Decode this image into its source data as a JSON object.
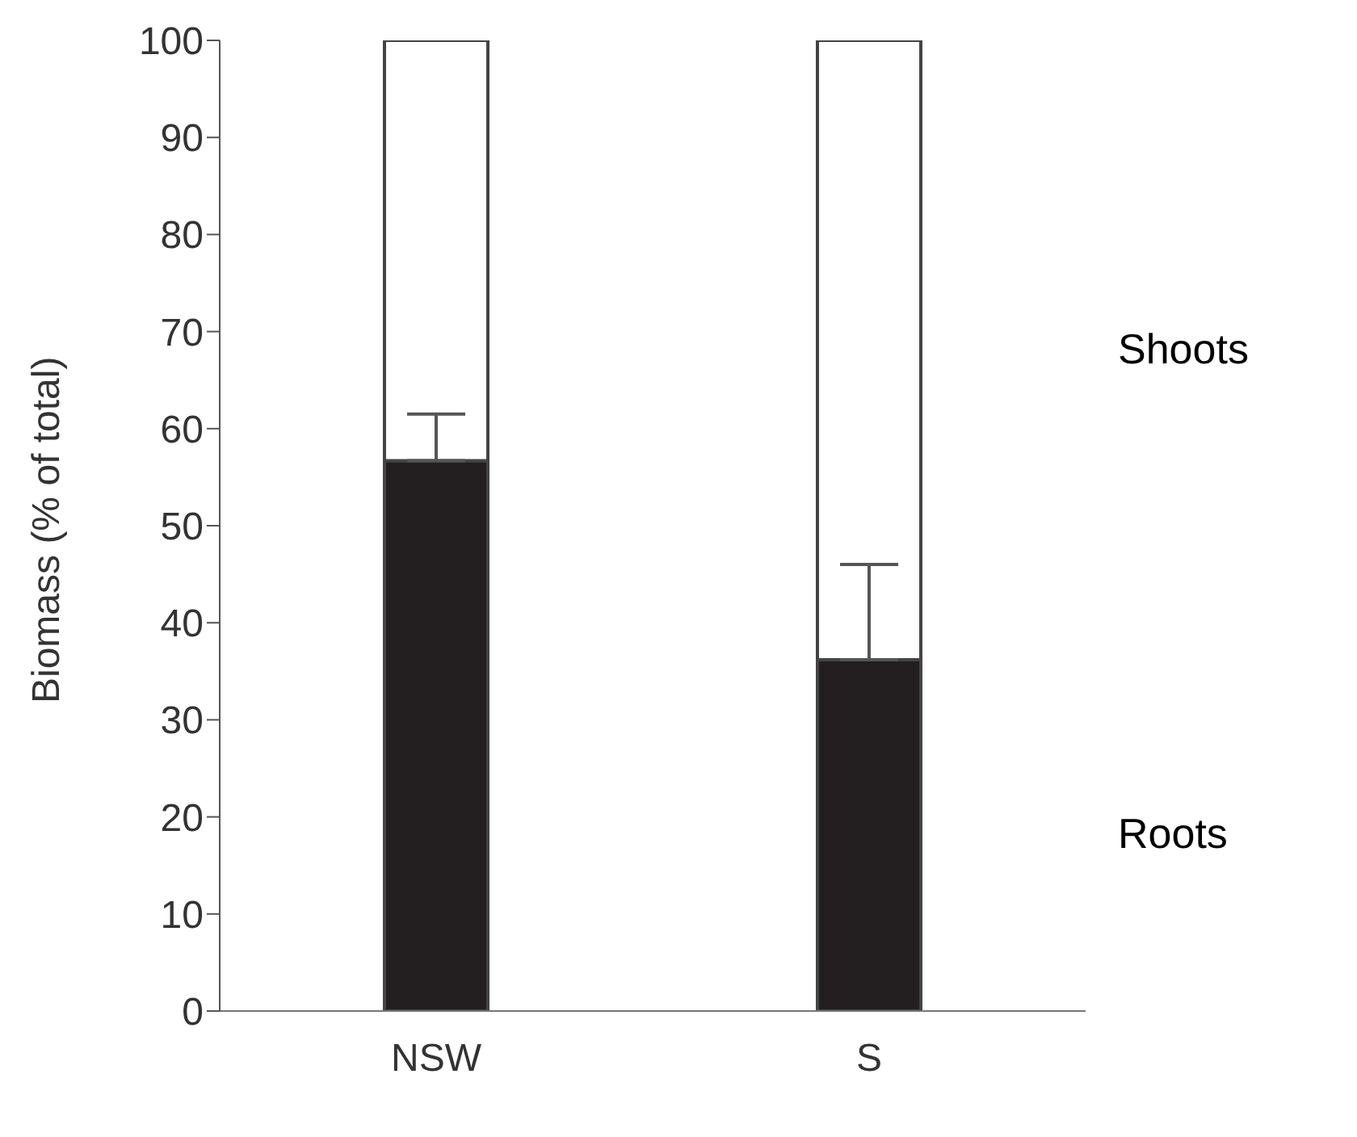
{
  "chart_data": {
    "type": "bar",
    "ylabel": "Biomass (% of total)",
    "categories": [
      "NSW",
      "S"
    ],
    "stacked": true,
    "legend": false,
    "series": [
      {
        "name": "Roots",
        "color": "#231f20",
        "values": [
          56.7,
          36.2
        ],
        "errors": [
          [
            56.7,
            61.5
          ],
          [
            36.2,
            46.0
          ]
        ]
      },
      {
        "name": "Shoots",
        "color": "#ffffff",
        "values": [
          43.3,
          63.8
        ]
      }
    ],
    "ylim": [
      0,
      100
    ],
    "yticks": [
      0,
      10,
      20,
      30,
      40,
      50,
      60,
      70,
      80,
      90,
      100
    ],
    "grid": false
  }
}
